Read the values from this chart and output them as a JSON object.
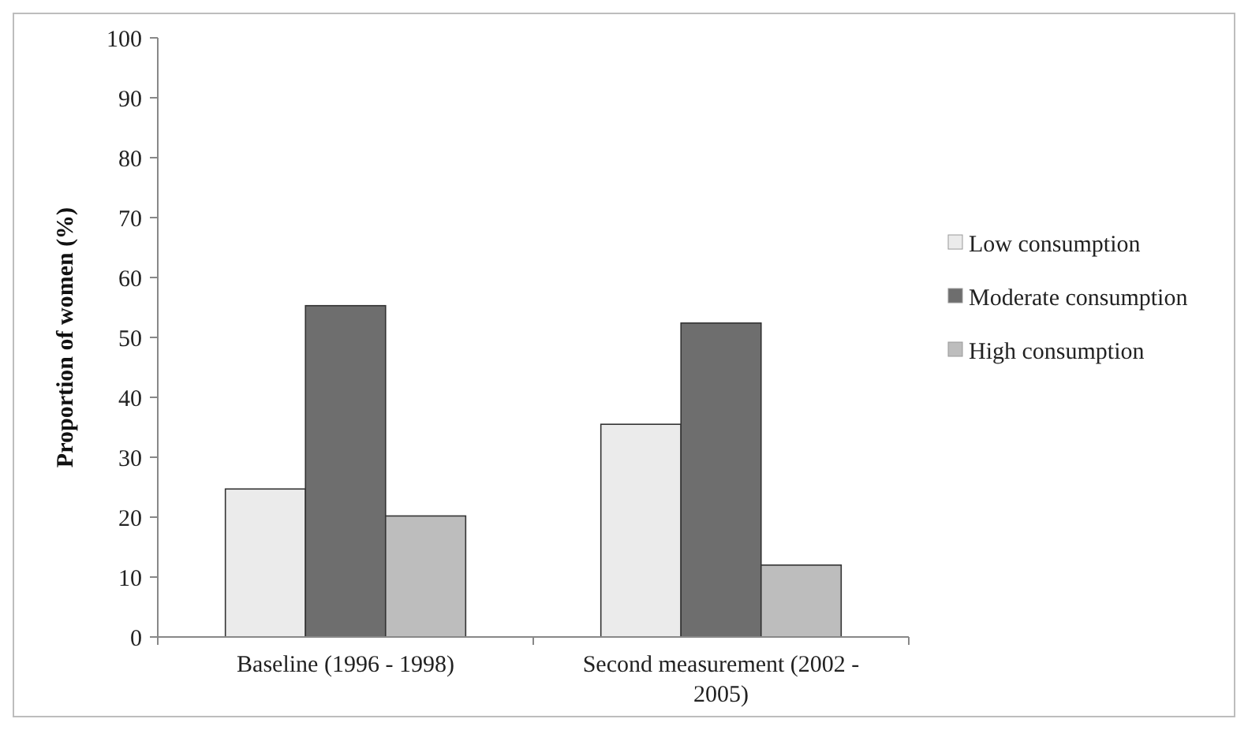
{
  "chart_data": {
    "type": "bar",
    "ylabel": "Proportion of women (%)",
    "categories": [
      "Baseline (1996 - 1998)",
      "Second measurement (2002 - 2005)"
    ],
    "series": [
      {
        "name": "Low consumption",
        "color": "#ebebeb",
        "values": [
          24.7,
          35.5
        ]
      },
      {
        "name": "Moderate consumption",
        "color": "#6e6e6e",
        "values": [
          55.3,
          52.4
        ]
      },
      {
        "name": "High consumption",
        "color": "#bdbdbd",
        "values": [
          20.2,
          12
        ]
      }
    ],
    "ylim": [
      0,
      100
    ],
    "yticks": [
      0,
      10,
      20,
      30,
      40,
      50,
      60,
      70,
      80,
      90,
      100
    ],
    "grid": false,
    "legend": "right"
  }
}
